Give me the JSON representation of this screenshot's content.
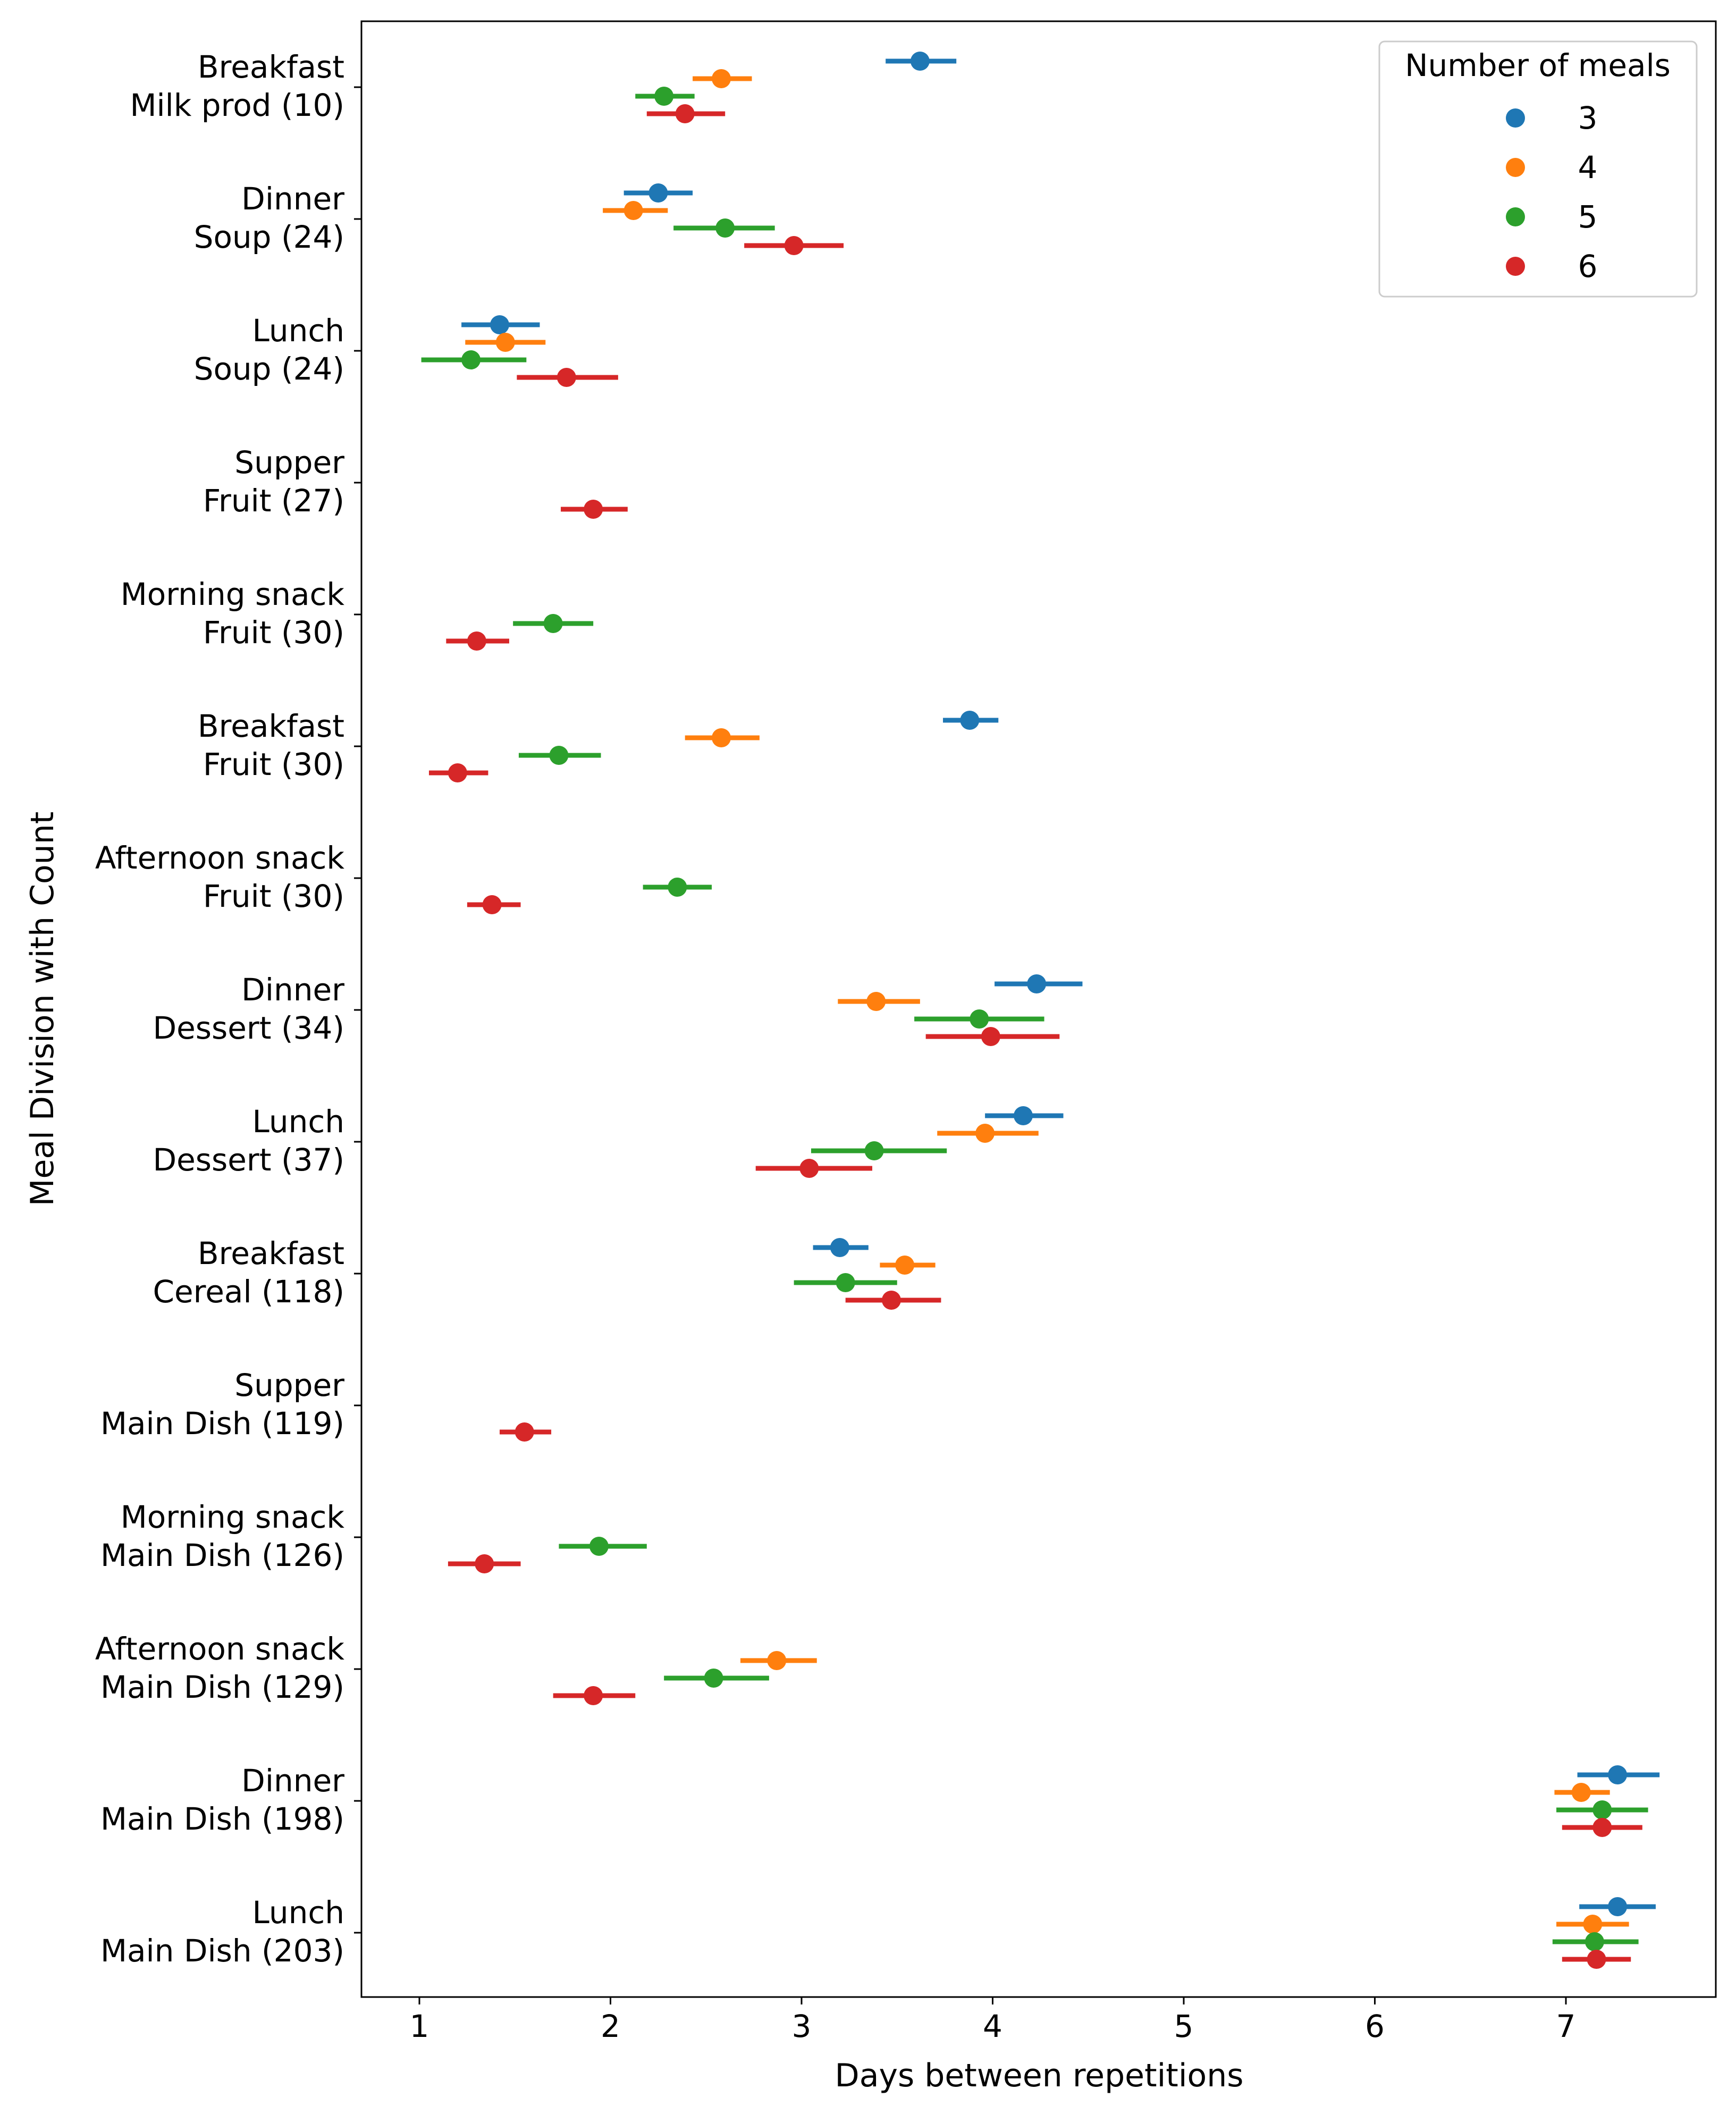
{
  "chart_data": {
    "type": "pointplot",
    "xlabel": "Days between repetitions",
    "ylabel": "Meal Division with Count",
    "xlim": [
      0.7,
      7.8
    ],
    "xticks": [
      1,
      2,
      3,
      4,
      5,
      6,
      7
    ],
    "grid": false,
    "legend": {
      "title": "Number of meals",
      "position": "top-right",
      "entries": [
        "3",
        "4",
        "5",
        "6"
      ]
    },
    "categories": [
      [
        "Breakfast",
        "Milk prod (10)"
      ],
      [
        "Dinner",
        "Soup (24)"
      ],
      [
        "Lunch",
        "Soup (24)"
      ],
      [
        "Supper",
        "Fruit (27)"
      ],
      [
        "Morning snack",
        "Fruit (30)"
      ],
      [
        "Breakfast",
        "Fruit (30)"
      ],
      [
        "Afternoon snack",
        "Fruit (30)"
      ],
      [
        "Dinner",
        "Dessert (34)"
      ],
      [
        "Lunch",
        "Dessert (37)"
      ],
      [
        "Breakfast",
        "Cereal (118)"
      ],
      [
        "Supper",
        "Main Dish (119)"
      ],
      [
        "Morning snack",
        "Main Dish (126)"
      ],
      [
        "Afternoon snack",
        "Main Dish (129)"
      ],
      [
        "Dinner",
        "Main Dish (198)"
      ],
      [
        "Lunch",
        "Main Dish (203)"
      ]
    ],
    "series": [
      {
        "name": "3",
        "color": "#1f77b4",
        "points": [
          [
            3.62,
            3.44,
            3.81
          ],
          [
            2.25,
            2.07,
            2.43
          ],
          [
            1.42,
            1.22,
            1.63
          ],
          null,
          null,
          [
            3.88,
            3.74,
            4.03
          ],
          null,
          [
            4.23,
            4.01,
            4.47
          ],
          [
            4.16,
            3.96,
            4.37
          ],
          [
            3.2,
            3.06,
            3.35
          ],
          null,
          null,
          null,
          [
            7.27,
            7.06,
            7.49
          ],
          [
            7.27,
            7.07,
            7.47
          ]
        ]
      },
      {
        "name": "4",
        "color": "#ff7f0e",
        "points": [
          [
            2.58,
            2.43,
            2.74
          ],
          [
            2.12,
            1.96,
            2.3
          ],
          [
            1.45,
            1.24,
            1.66
          ],
          null,
          null,
          [
            2.58,
            2.39,
            2.78
          ],
          null,
          [
            3.39,
            3.19,
            3.62
          ],
          [
            3.96,
            3.71,
            4.24
          ],
          [
            3.54,
            3.41,
            3.7
          ],
          null,
          null,
          [
            2.87,
            2.68,
            3.08
          ],
          [
            7.08,
            6.94,
            7.23
          ],
          [
            7.14,
            6.95,
            7.33
          ]
        ]
      },
      {
        "name": "5",
        "color": "#2ca02c",
        "points": [
          [
            2.28,
            2.13,
            2.44
          ],
          [
            2.6,
            2.33,
            2.86
          ],
          [
            1.27,
            1.01,
            1.56
          ],
          null,
          [
            1.7,
            1.49,
            1.91
          ],
          [
            1.73,
            1.52,
            1.95
          ],
          [
            2.35,
            2.17,
            2.53
          ],
          [
            3.93,
            3.59,
            4.27
          ],
          [
            3.38,
            3.05,
            3.76
          ],
          [
            3.23,
            2.96,
            3.5
          ],
          null,
          [
            1.94,
            1.73,
            2.19
          ],
          [
            2.54,
            2.28,
            2.83
          ],
          [
            7.19,
            6.95,
            7.43
          ],
          [
            7.15,
            6.93,
            7.38
          ]
        ]
      },
      {
        "name": "6",
        "color": "#d62728",
        "points": [
          [
            2.39,
            2.19,
            2.6
          ],
          [
            2.96,
            2.7,
            3.22
          ],
          [
            1.77,
            1.51,
            2.04
          ],
          [
            1.91,
            1.74,
            2.09
          ],
          [
            1.3,
            1.14,
            1.47
          ],
          [
            1.2,
            1.05,
            1.36
          ],
          [
            1.38,
            1.25,
            1.53
          ],
          [
            3.99,
            3.65,
            4.35
          ],
          [
            3.04,
            2.76,
            3.37
          ],
          [
            3.47,
            3.23,
            3.73
          ],
          [
            1.55,
            1.42,
            1.69
          ],
          [
            1.34,
            1.15,
            1.53
          ],
          [
            1.91,
            1.7,
            2.13
          ],
          [
            7.19,
            6.98,
            7.4
          ],
          [
            7.16,
            6.98,
            7.34
          ]
        ]
      }
    ]
  }
}
